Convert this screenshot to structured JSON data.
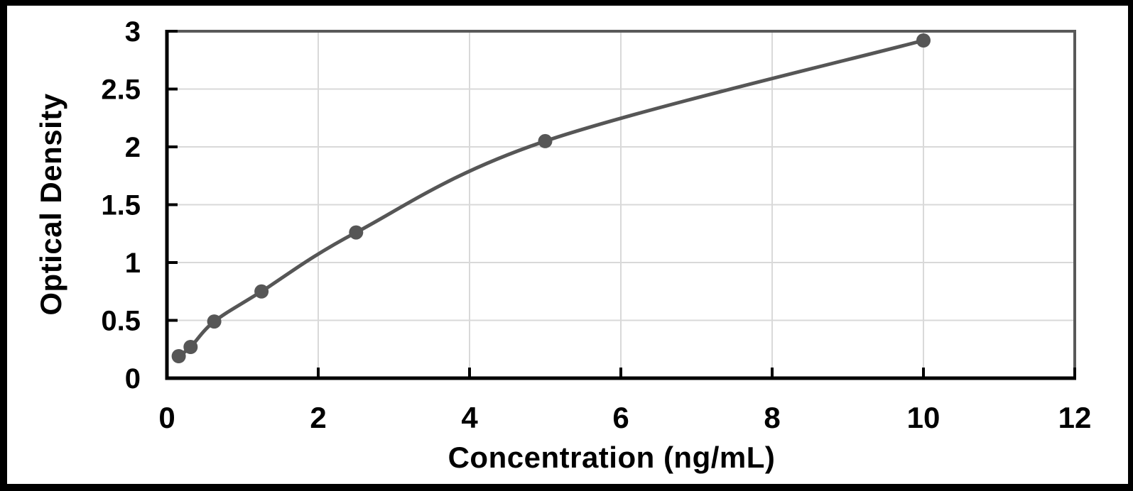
{
  "chart_data": {
    "type": "line",
    "title": "",
    "xlabel": "Concentration (ng/mL)",
    "ylabel": "Optical Density",
    "x": [
      0.156,
      0.313,
      0.625,
      1.25,
      2.5,
      5,
      10
    ],
    "y": [
      0.19,
      0.27,
      0.49,
      0.75,
      1.26,
      2.05,
      2.92
    ],
    "xlim": [
      0,
      12
    ],
    "ylim": [
      0,
      3
    ],
    "x_ticks": [
      0,
      2,
      4,
      6,
      8,
      10,
      12
    ],
    "x_tick_labels": [
      "0",
      "2",
      "4",
      "6",
      "8",
      "10",
      "12"
    ],
    "y_ticks": [
      0,
      0.5,
      1,
      1.5,
      2,
      2.5,
      3
    ],
    "y_tick_labels": [
      "0",
      "0.5",
      "1",
      "1.5",
      "2",
      "2.5",
      "3"
    ],
    "grid": true,
    "smooth": true,
    "marker": "circle",
    "legend": "none"
  },
  "colors": {
    "series": "#565656",
    "marker": "#565656",
    "gridline": "#d9d9d9",
    "axis": "#000000",
    "plot_border": "#595959",
    "tick_text": "#000000",
    "frame": "#000000",
    "background": "#ffffff"
  }
}
